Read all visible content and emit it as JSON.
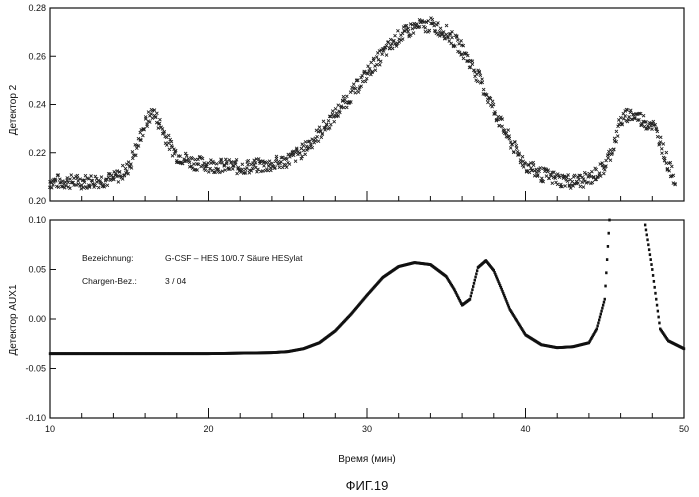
{
  "figure_caption": "ФИГ.19",
  "chart_data": [
    {
      "type": "scatter",
      "ylabel": "Детектор  2",
      "xlim": [
        10,
        50
      ],
      "ylim": [
        0.2,
        0.28
      ],
      "yticks": [
        "0.20",
        "0.22",
        "0.24",
        "0.26",
        "0.28"
      ],
      "marker": "x",
      "series": [
        {
          "x": [
            10,
            12,
            14,
            15,
            15.5,
            16,
            16.5,
            17,
            17.5,
            18,
            19,
            20,
            22,
            24,
            25,
            26,
            27,
            28,
            29,
            30,
            31,
            32,
            33,
            34,
            35,
            36,
            37,
            38,
            39,
            40,
            41,
            42,
            43,
            44,
            45,
            45.5,
            46,
            46.5,
            47,
            47.5,
            48,
            48.5,
            49,
            49.5
          ],
          "y": [
            0.208,
            0.208,
            0.209,
            0.214,
            0.223,
            0.232,
            0.237,
            0.231,
            0.224,
            0.219,
            0.216,
            0.215,
            0.214,
            0.215,
            0.217,
            0.221,
            0.228,
            0.236,
            0.244,
            0.253,
            0.261,
            0.268,
            0.272,
            0.273,
            0.27,
            0.263,
            0.252,
            0.238,
            0.225,
            0.215,
            0.211,
            0.209,
            0.208,
            0.209,
            0.214,
            0.222,
            0.233,
            0.236,
            0.235,
            0.233,
            0.232,
            0.225,
            0.215,
            0.208
          ]
        }
      ]
    },
    {
      "type": "line",
      "ylabel": "Детектор  AUX1",
      "xlabel": "Время (мин)",
      "xlim": [
        10,
        50
      ],
      "ylim": [
        -0.1,
        0.1
      ],
      "xticks": [
        "10",
        "20",
        "30",
        "40",
        "50"
      ],
      "yticks": [
        "-0.10",
        "-0.05",
        "0.00",
        "0.05",
        "0.10"
      ],
      "annotations": [
        {
          "key": "Bezeichnung:",
          "value": "G-CSF – HES 10/0.7 Säure HESylat"
        },
        {
          "key": "Chargen-Bez.:",
          "value": "3 / 04"
        }
      ],
      "series": [
        {
          "x": [
            10,
            15,
            20,
            24,
            25,
            26,
            27,
            28,
            29,
            30,
            31,
            32,
            33,
            34,
            35,
            35.5,
            36,
            36.5,
            37,
            37.5,
            38,
            38.5,
            39,
            40,
            41,
            42,
            43,
            44,
            44.5,
            45,
            45.3,
            47.5,
            48,
            48.5,
            49,
            49.5,
            50
          ],
          "y": [
            -0.035,
            -0.035,
            -0.035,
            -0.034,
            -0.033,
            -0.03,
            -0.024,
            -0.012,
            0.005,
            0.024,
            0.042,
            0.053,
            0.057,
            0.055,
            0.043,
            0.03,
            0.014,
            0.02,
            0.052,
            0.059,
            0.049,
            0.03,
            0.01,
            -0.016,
            -0.026,
            -0.029,
            -0.028,
            -0.024,
            -0.01,
            0.02,
            0.1,
            0.1,
            0.05,
            -0.01,
            -0.022,
            -0.026,
            -0.03
          ]
        }
      ]
    }
  ]
}
